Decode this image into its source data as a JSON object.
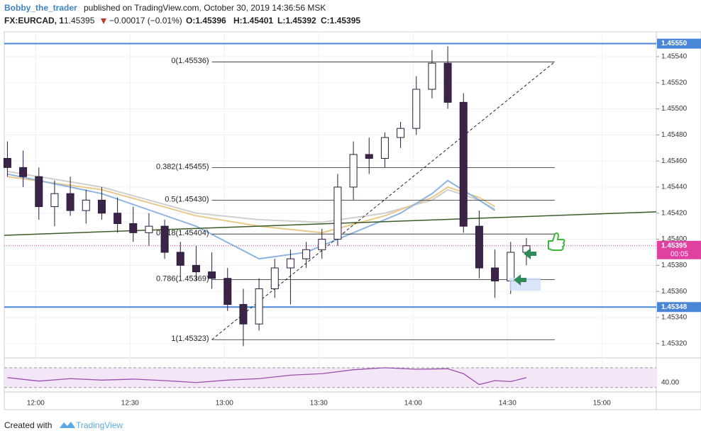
{
  "header": {
    "author": "Bobby_the_trader",
    "published": "published on TradingView.com, October 30, 2019 14:36:56 MSK",
    "symbol": "FX:EURCAD, 1",
    "price": "1.45395",
    "change": "−0.00017 (−0.01%)",
    "open": "O:1.45396",
    "high": "H:1.45401",
    "low": "L:1.45392",
    "close": "C:1.45395"
  },
  "footer": {
    "created": "Created with",
    "brand": "TradingView"
  },
  "chart_data": {
    "type": "candlestick",
    "xlim": [
      710,
      917.3
    ],
    "xticks": [
      {
        "value": 720,
        "label": "12:00"
      },
      {
        "value": 750,
        "label": "12:30"
      },
      {
        "value": 780,
        "label": "13:00"
      },
      {
        "value": 810,
        "label": "13:30"
      },
      {
        "value": 840,
        "label": "14:00"
      },
      {
        "value": 870,
        "label": "14:30"
      },
      {
        "value": 900,
        "label": "15:00"
      }
    ],
    "ylim": [
      1.45309,
      1.45559
    ],
    "yticks": [
      {
        "value": 1.4532,
        "label": "1.45320"
      },
      {
        "value": 1.4534,
        "label": "1.45340"
      },
      {
        "value": 1.4536,
        "label": "1.45360"
      },
      {
        "value": 1.4538,
        "label": "1.45380"
      },
      {
        "value": 1.454,
        "label": "1.45400"
      },
      {
        "value": 1.4542,
        "label": "1.45420"
      },
      {
        "value": 1.4544,
        "label": "1.45440"
      },
      {
        "value": 1.4546,
        "label": "1.45460"
      },
      {
        "value": 1.4548,
        "label": "1.45480"
      },
      {
        "value": 1.455,
        "label": "1.45500"
      },
      {
        "value": 1.4552,
        "label": "1.45520"
      },
      {
        "value": 1.4554,
        "label": "1.45540"
      }
    ],
    "grid": true,
    "up_color": "#ffffff",
    "down_color": "#3b2448",
    "outline": "#2b1b3b",
    "x": [
      711,
      716,
      721,
      726,
      731,
      736,
      741,
      746,
      751,
      756,
      761,
      766,
      771,
      776,
      781,
      786,
      791,
      796,
      801,
      806,
      811,
      816,
      821,
      826,
      831,
      836,
      841,
      846,
      851,
      856,
      861,
      866,
      871,
      876
    ],
    "open": [
      1.45462,
      1.45455,
      1.45448,
      1.45425,
      1.45435,
      1.45422,
      1.4543,
      1.4542,
      1.45412,
      1.45405,
      1.4541,
      1.4539,
      1.4538,
      1.45375,
      1.4537,
      1.4535,
      1.45335,
      1.45362,
      1.45378,
      1.45385,
      1.45392,
      1.454,
      1.4544,
      1.45465,
      1.45462,
      1.45478,
      1.45485,
      1.45515,
      1.45535,
      1.45505,
      1.4541,
      1.45378,
      1.45368,
      1.4539
    ],
    "high": [
      1.45475,
      1.45468,
      1.45455,
      1.45445,
      1.45448,
      1.45438,
      1.4544,
      1.45432,
      1.45425,
      1.4542,
      1.45415,
      1.45398,
      1.45395,
      1.4539,
      1.45378,
      1.45362,
      1.4537,
      1.45385,
      1.45392,
      1.45398,
      1.45408,
      1.4545,
      1.45475,
      1.45478,
      1.45482,
      1.4549,
      1.45525,
      1.45545,
      1.45548,
      1.45512,
      1.45422,
      1.45392,
      1.45398,
      1.45401
    ],
    "low": [
      1.45448,
      1.4544,
      1.45415,
      1.4541,
      1.45418,
      1.45412,
      1.45415,
      1.45405,
      1.45398,
      1.45395,
      1.45385,
      1.45372,
      1.45368,
      1.45362,
      1.45345,
      1.45318,
      1.4533,
      1.45355,
      1.4535,
      1.45378,
      1.45385,
      1.45395,
      1.4543,
      1.4545,
      1.45455,
      1.4547,
      1.4548,
      1.45508,
      1.455,
      1.45405,
      1.4537,
      1.45355,
      1.45358,
      1.4538
    ],
    "close": [
      1.45455,
      1.45448,
      1.45425,
      1.45435,
      1.45422,
      1.4543,
      1.4542,
      1.45412,
      1.45405,
      1.4541,
      1.4539,
      1.4538,
      1.45375,
      1.4537,
      1.4535,
      1.45335,
      1.45362,
      1.45378,
      1.45385,
      1.45392,
      1.454,
      1.4544,
      1.45465,
      1.45462,
      1.45478,
      1.45485,
      1.45515,
      1.45535,
      1.45505,
      1.4541,
      1.45378,
      1.45368,
      1.4539,
      1.45395
    ],
    "moving_averages": [
      {
        "color": "#cfcfcf",
        "x": [
          711,
          741,
          771,
          791,
          811,
          831,
          846,
          851,
          861,
          866
        ],
        "y": [
          1.45452,
          1.4544,
          1.4542,
          1.45415,
          1.45413,
          1.4542,
          1.4543,
          1.45438,
          1.4543,
          1.45423
        ]
      },
      {
        "color": "#e8c98a",
        "x": [
          711,
          741,
          771,
          791,
          811,
          831,
          846,
          851,
          861,
          866
        ],
        "y": [
          1.45448,
          1.45438,
          1.45418,
          1.4541,
          1.45405,
          1.45418,
          1.45432,
          1.4544,
          1.45432,
          1.45425
        ]
      },
      {
        "color": "#8fb4e3",
        "x": [
          711,
          741,
          771,
          791,
          806,
          821,
          836,
          846,
          851,
          861,
          866
        ],
        "y": [
          1.4545,
          1.45435,
          1.4541,
          1.45385,
          1.4539,
          1.45405,
          1.4542,
          1.45435,
          1.45445,
          1.4543,
          1.45422
        ]
      }
    ],
    "hlines": [
      {
        "price": 1.4555,
        "label": "1.45550",
        "color": "#4a86d6"
      },
      {
        "price": 1.45348,
        "label": "1.45348",
        "color": "#4a86d6"
      }
    ],
    "trendline": {
      "color": "#3a5a2a",
      "x": [
        710,
        917.3
      ],
      "y": [
        1.45403,
        1.45421
      ]
    },
    "fib": {
      "x": [
        776,
        885
      ],
      "levels": [
        {
          "label": "0(1.45536)",
          "price": 1.45536
        },
        {
          "label": "0.382(1.45455)",
          "price": 1.45455
        },
        {
          "label": "0.5(1.45430)",
          "price": 1.4543
        },
        {
          "label": "0.618(1.45404)",
          "price": 1.45404
        },
        {
          "label": "0.786(1.45369)",
          "price": 1.45369
        },
        {
          "label": "1(1.45323)",
          "price": 1.45323
        }
      ]
    },
    "last_price": {
      "price": 1.45395,
      "label": "1.45395",
      "countdown": "00:05",
      "color": "#e040a0"
    },
    "rsi": {
      "color": "#9c4fb0",
      "ylim": [
        21,
        90
      ],
      "bands": [
        30,
        70
      ],
      "yticks": [
        {
          "value": 40,
          "label": "40.00"
        }
      ],
      "x": [
        711,
        721,
        731,
        741,
        751,
        761,
        771,
        781,
        791,
        801,
        811,
        821,
        831,
        841,
        851,
        856,
        861,
        866,
        871,
        876
      ],
      "values": [
        50,
        43,
        48,
        45,
        47,
        44,
        40,
        45,
        48,
        55,
        58,
        66,
        70,
        67,
        68,
        58,
        36,
        44,
        42,
        50
      ]
    }
  }
}
